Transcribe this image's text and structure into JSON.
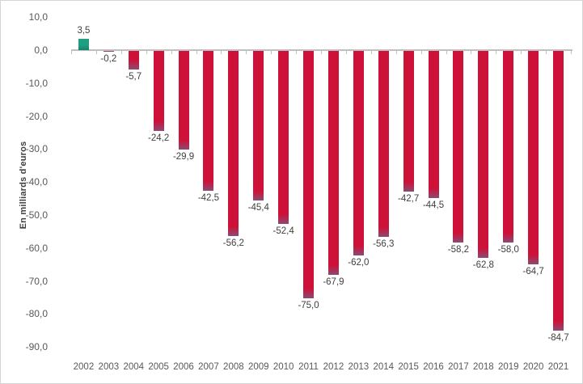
{
  "chart_data": {
    "type": "bar",
    "title": "",
    "xlabel": "",
    "ylabel": "En milliards d'euros",
    "categories": [
      "2002",
      "2003",
      "2004",
      "2005",
      "2006",
      "2007",
      "2008",
      "2009",
      "2010",
      "2011",
      "2012",
      "2013",
      "2014",
      "2015",
      "2016",
      "2017",
      "2018",
      "2019",
      "2020",
      "2021"
    ],
    "values": [
      3.5,
      -0.2,
      -5.7,
      -24.2,
      -29.9,
      -42.5,
      -56.2,
      -45.4,
      -52.4,
      -75.0,
      -67.9,
      -62.0,
      -56.3,
      -42.7,
      -44.5,
      -58.2,
      -62.8,
      -58.0,
      -64.7,
      -84.7
    ],
    "value_labels": [
      "3,5",
      "-0,2",
      "-5,7",
      "-24,2",
      "-29,9",
      "-42,5",
      "-56,2",
      "-45,4",
      "-52,4",
      "-75,0",
      "-67,9",
      "-62,0",
      "-56,3",
      "-42,7",
      "-44,5",
      "-58,2",
      "-62,8",
      "-58,0",
      "-64,7",
      "-84,7"
    ],
    "y_ticks": [
      {
        "value": 10,
        "label": "10,0"
      },
      {
        "value": 0,
        "label": "0,0"
      },
      {
        "value": -10,
        "label": "-10,0"
      },
      {
        "value": -20,
        "label": "-20,0"
      },
      {
        "value": -30,
        "label": "-30,0"
      },
      {
        "value": -40,
        "label": "-40,0"
      },
      {
        "value": -50,
        "label": "-50,0"
      },
      {
        "value": -60,
        "label": "-60,0"
      },
      {
        "value": -70,
        "label": "-70,0"
      },
      {
        "value": -80,
        "label": "-80,0"
      },
      {
        "value": -90,
        "label": "-90,0"
      }
    ],
    "ylim": [
      -90,
      10
    ],
    "grid": false,
    "legend": false,
    "colors": {
      "positive_bar": "#1E9E82",
      "positive_bar_base": "#15816B",
      "negative_bar": "#CE1138",
      "negative_bar_tip": "#8C4A73",
      "axis_line": "#BFBFBF",
      "tick_label": "#595959",
      "value_label": "#3F3F3F",
      "axis_title": "#3F3F3F",
      "background": "#FFFFFF",
      "border": "#D5D5D5"
    }
  }
}
